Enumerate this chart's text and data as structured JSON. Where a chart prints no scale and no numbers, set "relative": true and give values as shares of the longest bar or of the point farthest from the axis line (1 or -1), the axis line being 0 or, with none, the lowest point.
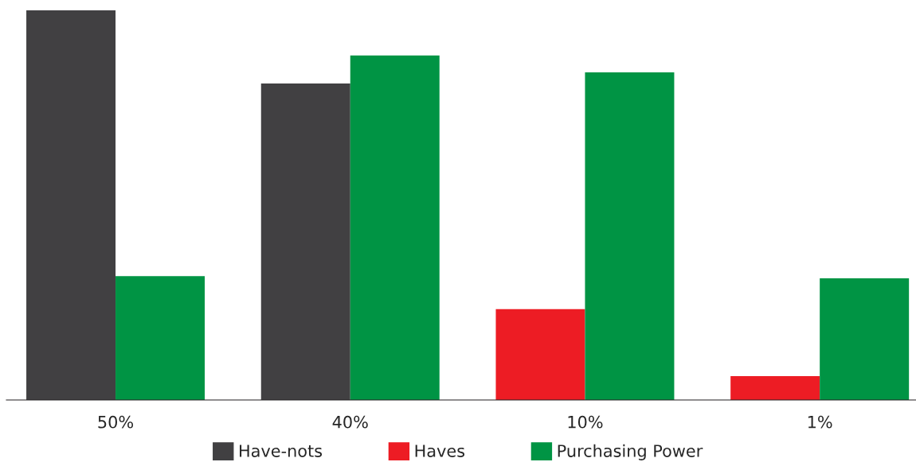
{
  "chart_data": {
    "type": "bar",
    "relative": true,
    "categories": [
      "50%",
      "40%",
      "10%",
      "1%"
    ],
    "series": [
      {
        "name": "Have-nots",
        "color": "#414042",
        "values": [
          1,
          0.812,
          null,
          null
        ]
      },
      {
        "name": "Haves",
        "color": "#ed1c24",
        "values": [
          null,
          null,
          0.233,
          0.061
        ]
      },
      {
        "name": "Purchasing Power",
        "color": "#009444",
        "values": [
          0.318,
          0.884,
          0.841,
          0.312
        ]
      }
    ],
    "legend": "bottom",
    "grid": false
  }
}
